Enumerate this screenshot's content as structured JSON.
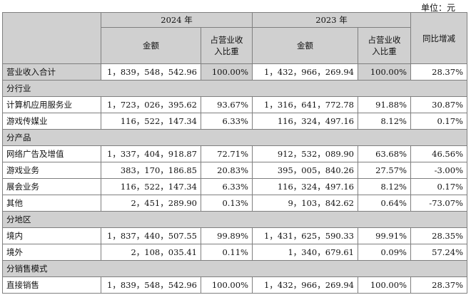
{
  "unit_label": "单位：元",
  "headers": {
    "year_2024": "2024 年",
    "year_2023": "2023 年",
    "amount": "金额",
    "share": "占营业收入比重",
    "yoy": "同比增减"
  },
  "rows": [
    {
      "type": "total",
      "label": "营业收入合计",
      "amount_2024": "1，839，548，542.96",
      "share_2024": "100.00%",
      "amount_2023": "1，432，966，269.94",
      "share_2023": "100.00%",
      "yoy": "28.37%"
    },
    {
      "type": "section",
      "label": "分行业"
    },
    {
      "type": "data",
      "label": "计算机应用服务业",
      "amount_2024": "1，723，026，395.62",
      "share_2024": "93.67%",
      "amount_2023": "1，316，641，772.78",
      "share_2023": "91.88%",
      "yoy": "30.87%"
    },
    {
      "type": "data",
      "label": "游戏传媒业",
      "amount_2024": "116，522，147.34",
      "share_2024": "6.33%",
      "amount_2023": "116，324，497.16",
      "share_2023": "8.12%",
      "yoy": "0.17%"
    },
    {
      "type": "section",
      "label": "分产品"
    },
    {
      "type": "data",
      "label": "网络广告及增值",
      "amount_2024": "1，337，404，918.87",
      "share_2024": "72.71%",
      "amount_2023": "912，532，089.90",
      "share_2023": "63.68%",
      "yoy": "46.56%"
    },
    {
      "type": "data",
      "label": "游戏业务",
      "amount_2024": "383，170，186.85",
      "share_2024": "20.83%",
      "amount_2023": "395，005，840.26",
      "share_2023": "27.57%",
      "yoy": "-3.00%"
    },
    {
      "type": "data",
      "label": "展会业务",
      "amount_2024": "116，522，147.34",
      "share_2024": "6.33%",
      "amount_2023": "116，324，497.16",
      "share_2023": "8.12%",
      "yoy": "0.17%"
    },
    {
      "type": "data",
      "label": "其他",
      "amount_2024": "2，451，289.90",
      "share_2024": "0.13%",
      "amount_2023": "9，103，842.62",
      "share_2023": "0.64%",
      "yoy": "-73.07%"
    },
    {
      "type": "section",
      "label": "分地区"
    },
    {
      "type": "data",
      "label": "境内",
      "amount_2024": "1，837，440，507.55",
      "share_2024": "99.89%",
      "amount_2023": "1，431，625，590.33",
      "share_2023": "99.91%",
      "yoy": "28.35%"
    },
    {
      "type": "data",
      "label": "境外",
      "amount_2024": "2，108，035.41",
      "share_2024": "0.11%",
      "amount_2023": "1，340，679.61",
      "share_2023": "0.09%",
      "yoy": "57.24%"
    },
    {
      "type": "section",
      "label": "分销售模式"
    },
    {
      "type": "data",
      "label": "直接销售",
      "amount_2024": "1，839，548，542.96",
      "share_2024": "100.00%",
      "amount_2023": "1，432，966，269.94",
      "share_2023": "100.00%",
      "yoy": "28.37%"
    }
  ]
}
